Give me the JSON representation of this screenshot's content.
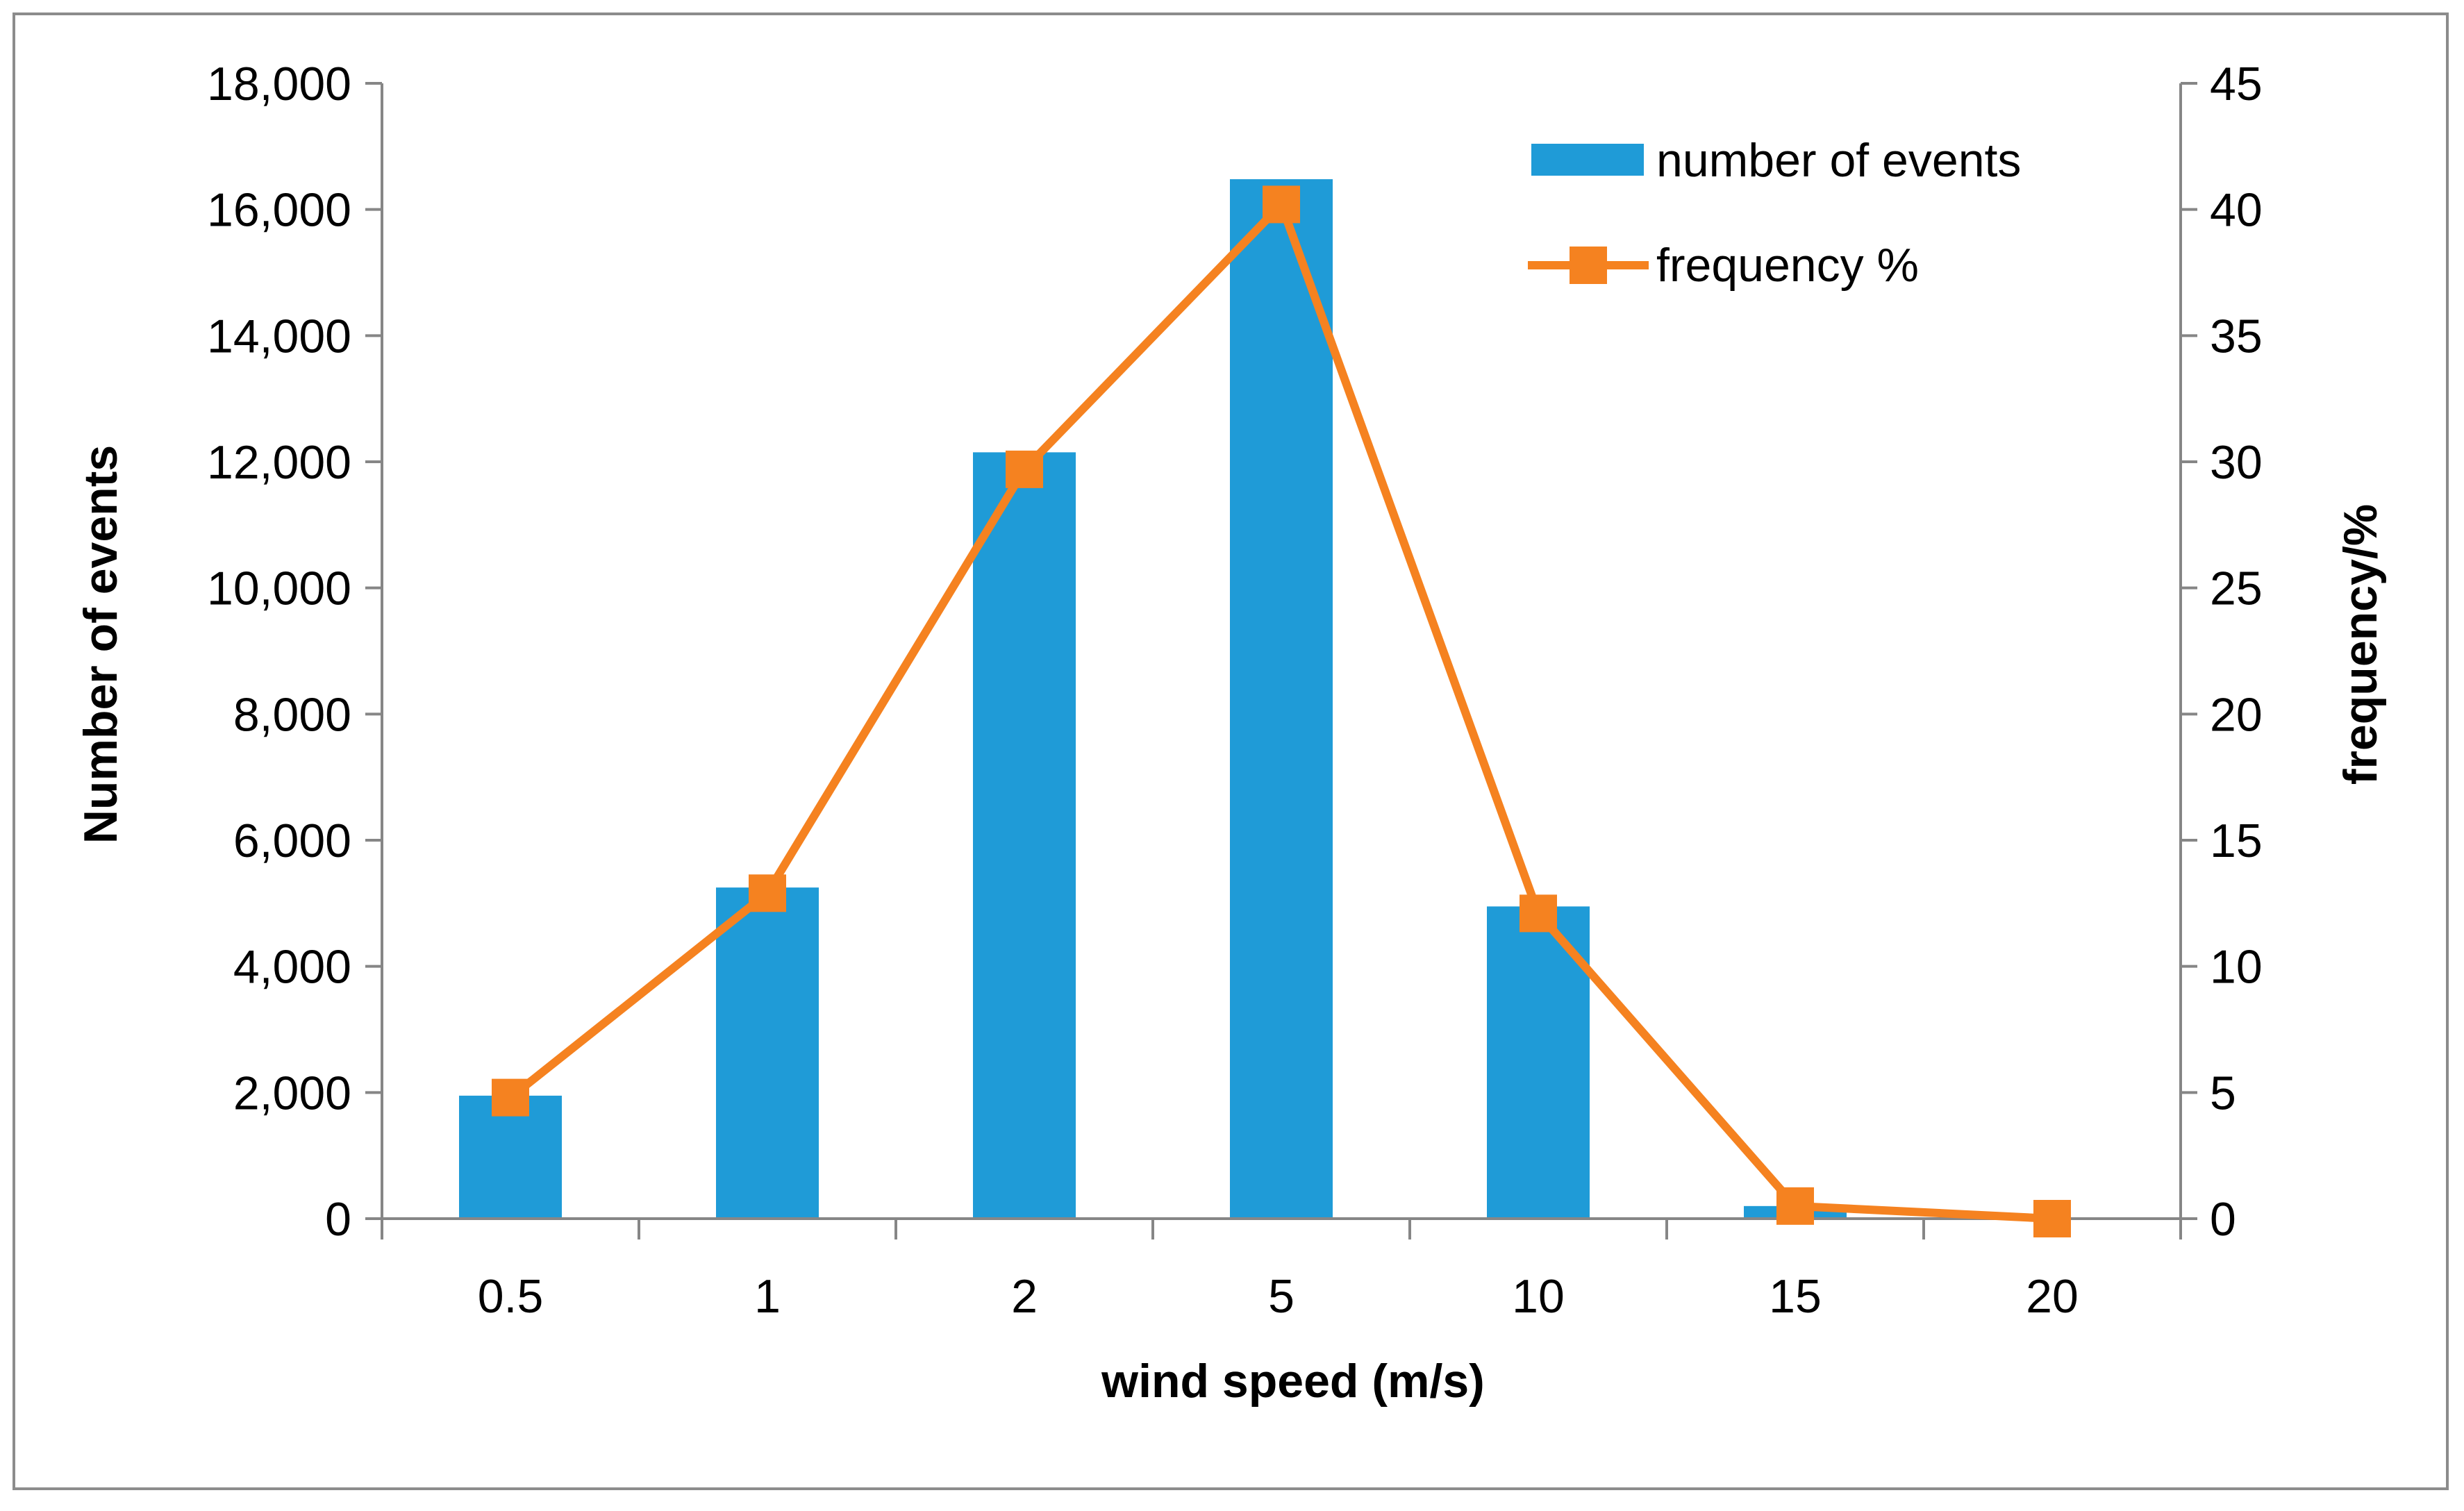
{
  "chart_data": {
    "type": "bar+line",
    "x_axis": {
      "title": "wind speed (m/s)",
      "categories": [
        "0.5",
        "1",
        "2",
        "5",
        "10",
        "15",
        "20"
      ]
    },
    "y_axis_left": {
      "title": "Number of events",
      "range": [
        0,
        18000
      ],
      "tick_values": [
        0,
        2000,
        4000,
        6000,
        8000,
        10000,
        12000,
        14000,
        16000,
        18000
      ],
      "tick_labels": [
        "0",
        "2,000",
        "4,000",
        "6,000",
        "8,000",
        "10,000",
        "12,000",
        "14,000",
        "16,000",
        "18,000"
      ]
    },
    "y_axis_right": {
      "title": "frequency/%",
      "range": [
        0,
        45
      ],
      "tick_values": [
        0,
        5,
        10,
        15,
        20,
        25,
        30,
        35,
        40,
        45
      ],
      "tick_labels": [
        "0",
        "5",
        "10",
        "15",
        "20",
        "25",
        "30",
        "35",
        "40",
        "45"
      ]
    },
    "series": [
      {
        "name": "number of events",
        "type": "bar",
        "axis": "left",
        "color": "#1f9bd7",
        "values": [
          1950,
          5250,
          12150,
          16480,
          4950,
          200,
          0
        ]
      },
      {
        "name": "frequency %",
        "type": "line",
        "axis": "right",
        "color": "#f58220",
        "marker": "square",
        "values": [
          4.8,
          12.9,
          29.7,
          40.2,
          12.1,
          0.5,
          0.0
        ]
      }
    ],
    "legend": {
      "position": "top-right",
      "items": [
        "number of events",
        "frequency %"
      ]
    },
    "grid": false
  }
}
